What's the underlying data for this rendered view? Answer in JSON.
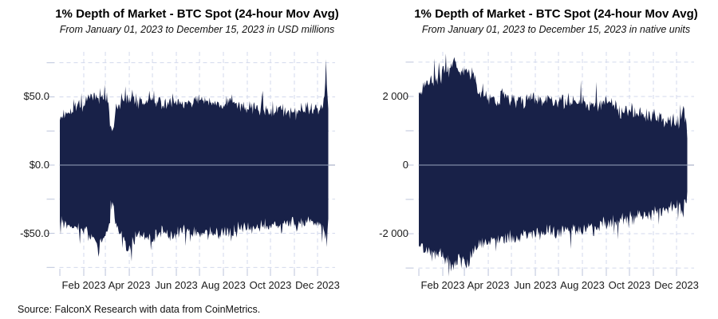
{
  "source_note": "Source: FalconX Research with data from CoinMetrics.",
  "colors": {
    "area_fill": "#182148",
    "grid_line": "#d3d9ec",
    "tick_mark": "#bcc4db",
    "zero_line": "#99a2bd",
    "background": "#ffffff"
  },
  "chart_data": [
    {
      "type": "area",
      "title": "1% Depth of Market - BTC Spot (24-hour Mov Avg)",
      "subtitle": "From January 01, 2023 to December 15, 2023 in USD millions",
      "unit": "USD millions",
      "x_range_days": [
        0,
        348
      ],
      "x_tick_labels": [
        "Feb 2023",
        "Apr 2023",
        "Jun 2023",
        "Aug 2023",
        "Oct 2023",
        "Dec 2023"
      ],
      "x_label_days": [
        31,
        90,
        151,
        212,
        273,
        334
      ],
      "x_minor_tick_days": [
        0,
        31,
        59,
        90,
        120,
        151,
        181,
        212,
        243,
        273,
        304,
        334
      ],
      "y_ticks": [
        {
          "v": 50,
          "label": "$50.0"
        },
        {
          "v": 0,
          "label": "$0.0"
        },
        {
          "v": -50,
          "label": "-$50.0"
        }
      ],
      "y_grid_step": 25,
      "ylim": [
        -83,
        83
      ],
      "grid": true,
      "legend": false,
      "noise_amp": 6,
      "series": [
        {
          "name": "ask-depth-usd-m",
          "seed": 3,
          "keypoints": [
            [
              0,
              34
            ],
            [
              8,
              38
            ],
            [
              16,
              41
            ],
            [
              24,
              43
            ],
            [
              31,
              45
            ],
            [
              38,
              50
            ],
            [
              45,
              52
            ],
            [
              50,
              49
            ],
            [
              55,
              47
            ],
            [
              59,
              46
            ],
            [
              63,
              42
            ],
            [
              66,
              28
            ],
            [
              69,
              27
            ],
            [
              73,
              40
            ],
            [
              80,
              47
            ],
            [
              87,
              50
            ],
            [
              95,
              48
            ],
            [
              103,
              45
            ],
            [
              110,
              47
            ],
            [
              118,
              50
            ],
            [
              126,
              46
            ],
            [
              134,
              44
            ],
            [
              142,
              47
            ],
            [
              151,
              46
            ],
            [
              160,
              44
            ],
            [
              170,
              46
            ],
            [
              181,
              48
            ],
            [
              190,
              46
            ],
            [
              200,
              48
            ],
            [
              212,
              46
            ],
            [
              222,
              47
            ],
            [
              232,
              44
            ],
            [
              243,
              42
            ],
            [
              252,
              43
            ],
            [
              262,
              41
            ],
            [
              273,
              39
            ],
            [
              283,
              41
            ],
            [
              293,
              40
            ],
            [
              304,
              38
            ],
            [
              312,
              40
            ],
            [
              320,
              39
            ],
            [
              328,
              41
            ],
            [
              334,
              40
            ],
            [
              340,
              42
            ],
            [
              343,
              50
            ],
            [
              345,
              78
            ],
            [
              346,
              60
            ],
            [
              348,
              38
            ]
          ]
        },
        {
          "name": "bid-depth-usd-m",
          "seed": 17,
          "keypoints": [
            [
              0,
              -40
            ],
            [
              8,
              -44
            ],
            [
              16,
              -46
            ],
            [
              24,
              -45
            ],
            [
              31,
              -48
            ],
            [
              38,
              -52
            ],
            [
              44,
              -55
            ],
            [
              48,
              -60
            ],
            [
              50,
              -68
            ],
            [
              53,
              -56
            ],
            [
              57,
              -52
            ],
            [
              60,
              -50
            ],
            [
              63,
              -46
            ],
            [
              66,
              -30
            ],
            [
              69,
              -29
            ],
            [
              73,
              -45
            ],
            [
              80,
              -52
            ],
            [
              85,
              -58
            ],
            [
              90,
              -62
            ],
            [
              95,
              -55
            ],
            [
              103,
              -50
            ],
            [
              110,
              -52
            ],
            [
              118,
              -55
            ],
            [
              126,
              -50
            ],
            [
              134,
              -48
            ],
            [
              142,
              -52
            ],
            [
              151,
              -50
            ],
            [
              160,
              -47
            ],
            [
              170,
              -49
            ],
            [
              181,
              -52
            ],
            [
              190,
              -49
            ],
            [
              200,
              -51
            ],
            [
              212,
              -48
            ],
            [
              222,
              -50
            ],
            [
              232,
              -46
            ],
            [
              243,
              -45
            ],
            [
              252,
              -47
            ],
            [
              262,
              -44
            ],
            [
              273,
              -43
            ],
            [
              283,
              -45
            ],
            [
              293,
              -42
            ],
            [
              304,
              -41
            ],
            [
              312,
              -43
            ],
            [
              320,
              -41
            ],
            [
              328,
              -43
            ],
            [
              334,
              -42
            ],
            [
              340,
              -44
            ],
            [
              344,
              -52
            ],
            [
              346,
              -56
            ],
            [
              348,
              -40
            ]
          ]
        }
      ]
    },
    {
      "type": "area",
      "title": "1% Depth of Market - BTC Spot (24-hour Mov Avg)",
      "subtitle": "From January 01, 2023 to December 15, 2023 in native units",
      "unit": "native units",
      "x_range_days": [
        0,
        348
      ],
      "x_tick_labels": [
        "Feb 2023",
        "Apr 2023",
        "Jun 2023",
        "Aug 2023",
        "Oct 2023",
        "Dec 2023"
      ],
      "x_label_days": [
        31,
        90,
        151,
        212,
        273,
        334
      ],
      "x_minor_tick_days": [
        0,
        31,
        59,
        90,
        120,
        151,
        181,
        212,
        243,
        273,
        304,
        334
      ],
      "y_ticks": [
        {
          "v": 2000,
          "label": "2 000"
        },
        {
          "v": 0,
          "label": "0"
        },
        {
          "v": -2000,
          "label": "-2 000"
        }
      ],
      "y_grid_step": 1000,
      "ylim": [
        -3300,
        3300
      ],
      "grid": true,
      "legend": false,
      "noise_amp": 280,
      "series": [
        {
          "name": "ask-depth-btc",
          "seed": 29,
          "keypoints": [
            [
              0,
              2100
            ],
            [
              8,
              2300
            ],
            [
              16,
              2450
            ],
            [
              24,
              2550
            ],
            [
              31,
              2650
            ],
            [
              36,
              2900
            ],
            [
              40,
              2750
            ],
            [
              45,
              2950
            ],
            [
              50,
              2800
            ],
            [
              55,
              2650
            ],
            [
              59,
              2800
            ],
            [
              63,
              2650
            ],
            [
              66,
              2500
            ],
            [
              70,
              2700
            ],
            [
              74,
              2400
            ],
            [
              78,
              2100
            ],
            [
              83,
              1950
            ],
            [
              90,
              1950
            ],
            [
              100,
              1900
            ],
            [
              110,
              2000
            ],
            [
              120,
              1900
            ],
            [
              130,
              1850
            ],
            [
              140,
              1950
            ],
            [
              151,
              1900
            ],
            [
              160,
              1850
            ],
            [
              170,
              1900
            ],
            [
              181,
              1850
            ],
            [
              190,
              1900
            ],
            [
              200,
              1800
            ],
            [
              212,
              1850
            ],
            [
              220,
              1800
            ],
            [
              230,
              1750
            ],
            [
              243,
              1800
            ],
            [
              250,
              1700
            ],
            [
              260,
              1620
            ],
            [
              273,
              1550
            ],
            [
              283,
              1500
            ],
            [
              293,
              1450
            ],
            [
              304,
              1400
            ],
            [
              312,
              1350
            ],
            [
              320,
              1300
            ],
            [
              330,
              1250
            ],
            [
              338,
              1200
            ],
            [
              343,
              1800
            ],
            [
              345,
              1400
            ],
            [
              348,
              950
            ]
          ]
        },
        {
          "name": "bid-depth-btc",
          "seed": 41,
          "keypoints": [
            [
              0,
              -2200
            ],
            [
              8,
              -2450
            ],
            [
              16,
              -2650
            ],
            [
              24,
              -2550
            ],
            [
              31,
              -2650
            ],
            [
              38,
              -2800
            ],
            [
              45,
              -2900
            ],
            [
              50,
              -2750
            ],
            [
              55,
              -2850
            ],
            [
              59,
              -2750
            ],
            [
              63,
              -2900
            ],
            [
              68,
              -2600
            ],
            [
              72,
              -2450
            ],
            [
              78,
              -2300
            ],
            [
              85,
              -2250
            ],
            [
              95,
              -2200
            ],
            [
              105,
              -2150
            ],
            [
              115,
              -2100
            ],
            [
              125,
              -2050
            ],
            [
              135,
              -2000
            ],
            [
              145,
              -2050
            ],
            [
              155,
              -1950
            ],
            [
              165,
              -1900
            ],
            [
              175,
              -1950
            ],
            [
              185,
              -1900
            ],
            [
              195,
              -1850
            ],
            [
              205,
              -1900
            ],
            [
              215,
              -1800
            ],
            [
              225,
              -1850
            ],
            [
              235,
              -1750
            ],
            [
              245,
              -1700
            ],
            [
              255,
              -1650
            ],
            [
              265,
              -1600
            ],
            [
              273,
              -1550
            ],
            [
              283,
              -1500
            ],
            [
              293,
              -1450
            ],
            [
              304,
              -1400
            ],
            [
              312,
              -1350
            ],
            [
              320,
              -1300
            ],
            [
              330,
              -1250
            ],
            [
              338,
              -1200
            ],
            [
              342,
              -1450
            ],
            [
              345,
              -1150
            ],
            [
              348,
              -900
            ]
          ]
        }
      ]
    }
  ]
}
